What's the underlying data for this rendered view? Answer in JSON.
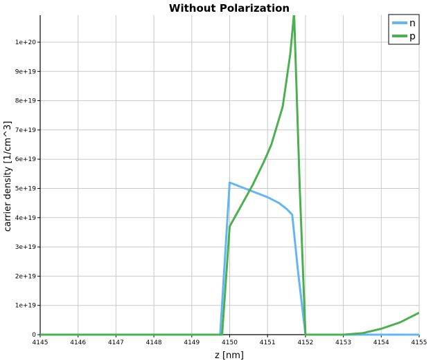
{
  "chart_data": {
    "type": "line",
    "title": "Without Polarization",
    "xlabel": "z [nm]",
    "ylabel": "carrier density [1/cm^3]",
    "xlim": [
      4145,
      4155
    ],
    "ylim": [
      0,
      1.09e+20
    ],
    "xticks": [
      4145,
      4146,
      4147,
      4148,
      4149,
      4150,
      4151,
      4152,
      4153,
      4154,
      4155
    ],
    "yticks": [
      0,
      1e+19,
      2e+19,
      3e+19,
      4e+19,
      5e+19,
      6e+19,
      7e+19,
      8e+19,
      9e+19,
      1e+20
    ],
    "ytick_labels": [
      "0",
      "1e+19",
      "2e+19",
      "3e+19",
      "4e+19",
      "5e+19",
      "6e+19",
      "7e+19",
      "8e+19",
      "9e+19",
      "1e+20"
    ],
    "grid": true,
    "legend_position": "top-right",
    "series": [
      {
        "name": "n",
        "color": "#64b5f6",
        "x": [
          4145,
          4149.75,
          4150.0,
          4150.5,
          4151.0,
          4151.3,
          4151.5,
          4151.65,
          4151.8,
          4152.0,
          4153,
          4154,
          4155
        ],
        "y": [
          0,
          0,
          5.2e+19,
          4.95e+19,
          4.7e+19,
          4.5e+19,
          4.3e+19,
          4.1e+19,
          2.2e+19,
          0,
          0,
          0,
          0
        ]
      },
      {
        "name": "p",
        "color": "#4caf50",
        "x": [
          4145,
          4149.8,
          4150.0,
          4150.3,
          4150.6,
          4150.9,
          4151.1,
          4151.4,
          4151.6,
          4151.7,
          4151.85,
          4152.0,
          4153.0,
          4153.5,
          4154.0,
          4154.5,
          4155.0
        ],
        "y": [
          0,
          0,
          3.7e+19,
          4.4e+19,
          5.1e+19,
          5.9e+19,
          6.5e+19,
          7.8e+19,
          9.6e+19,
          1.1e+20,
          5e+19,
          0,
          0,
          5e+17,
          2e+18,
          4.2e+18,
          7.5e+18
        ]
      }
    ]
  }
}
